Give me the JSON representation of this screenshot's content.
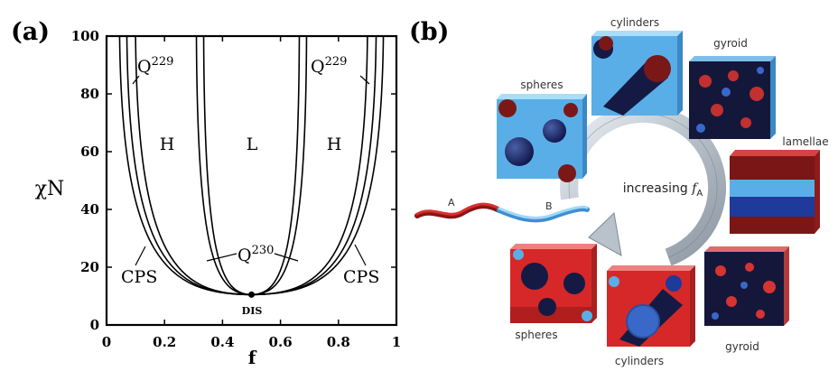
{
  "panel_a": {
    "label": "(a)",
    "xlabel": "f",
    "ylabel": "χN",
    "xticks": [
      "0",
      "0.2",
      "0.4",
      "0.6",
      "0.8",
      "1"
    ],
    "yticks": [
      "0",
      "20",
      "40",
      "60",
      "80",
      "100"
    ],
    "xlim": [
      0,
      1
    ],
    "ylim": [
      0,
      100
    ],
    "phase_labels": {
      "h_left": "H",
      "l_center": "L",
      "h_right": "H",
      "q229_left_base": "Q",
      "q229_left_sup": "229",
      "q229_right_base": "Q",
      "q229_right_sup": "229",
      "q230_base": "Q",
      "q230_sup": "230",
      "cps_left": "CPS",
      "cps_right": "CPS",
      "dis": "DIS"
    },
    "critical_point": {
      "f": 0.5,
      "chiN": 10.5
    },
    "boundaries": [
      {
        "name": "dis-cps",
        "f_left": 0.045,
        "f_right": 0.955
      },
      {
        "name": "cps-q229",
        "f_left": 0.07,
        "f_right": 0.93
      },
      {
        "name": "q229-h",
        "f_left": 0.1,
        "f_right": 0.9
      },
      {
        "name": "h-q230",
        "f_left": 0.31,
        "f_right": 0.69
      },
      {
        "name": "q230-l",
        "f_left": 0.335,
        "f_right": 0.665
      }
    ]
  },
  "panel_b": {
    "label": "(b)",
    "cubes": {
      "spheres_top": "spheres",
      "cylinders_top": "cylinders",
      "gyroid_top": "gyroid",
      "lamellae": "lamellae",
      "gyroid_bottom": "gyroid",
      "cylinders_bottom": "cylinders",
      "spheres_bottom": "spheres"
    },
    "arrow_label_base": "increasing ",
    "arrow_label_var": "f",
    "arrow_label_sub": "A",
    "chain_label_a": "A",
    "chain_label_b": "B",
    "colors": {
      "red_block": "#d42a2a",
      "dark_red": "#7a1212",
      "blue_block": "#5aaee8",
      "light_blue": "#8fd0f4",
      "navy": "#0f1433",
      "arrow": "#a9b4be"
    }
  }
}
